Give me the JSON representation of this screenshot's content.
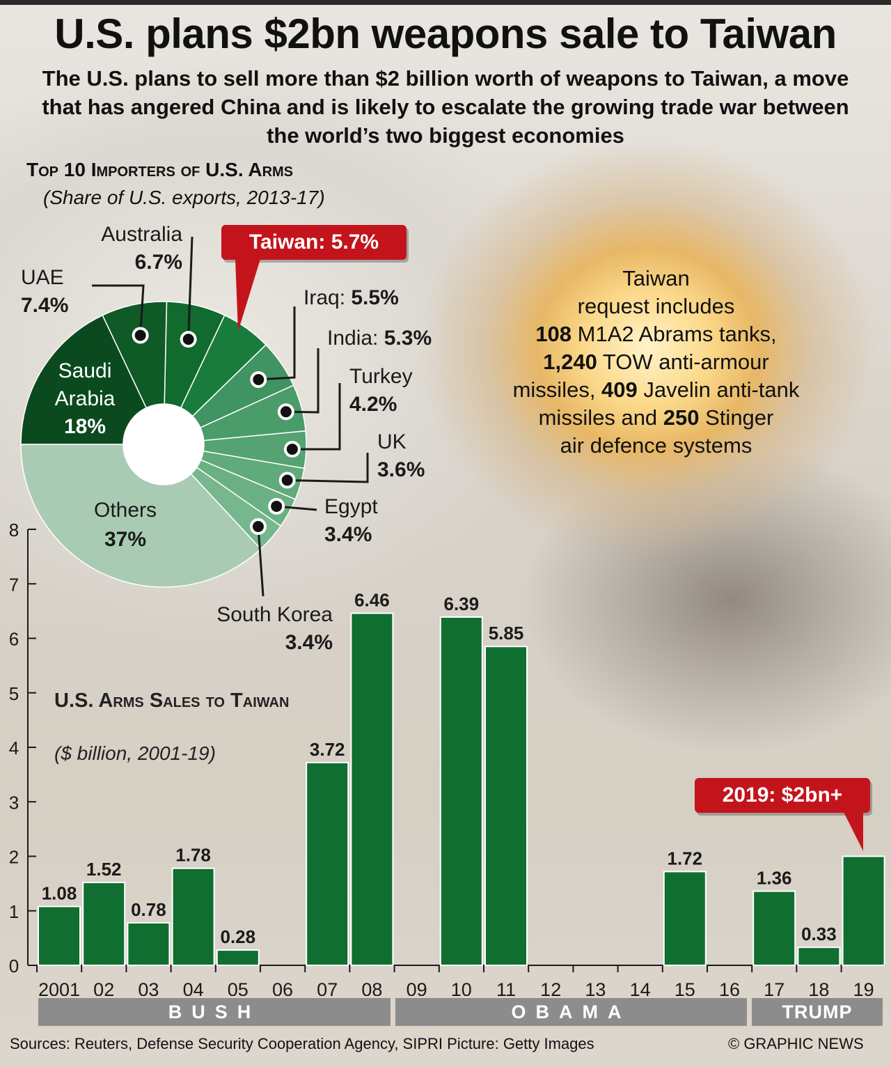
{
  "title": "U.S. plans $2bn weapons sale to Taiwan",
  "subtitle": "The U.S. plans to sell more than $2 billion worth of weapons to Taiwan, a move that has angered China and is likely to escalate the growing trade war between the world’s two biggest economies",
  "request": {
    "line1": "Taiwan",
    "line2": "request includes",
    "tanks_num": "108",
    "tanks_text": " M1A2 Abrams tanks,",
    "tow_num": "1,240",
    "tow_text": " TOW anti-armour",
    "javelin_pre": "missiles, ",
    "javelin_num": "409",
    "javelin_text": " Javelin anti-tank",
    "stinger_pre": "missiles and ",
    "stinger_num": "250",
    "stinger_text": " Stinger",
    "line_last": "air defence systems"
  },
  "callouts": {
    "taiwan": "Taiwan: 5.7%",
    "y2019": "2019: $2bn+"
  },
  "sources": "Sources: Reuters, Defense Security Cooperation Agency, SIPRI  Picture: Getty Images",
  "copyright": "© GRAPHIC NEWS",
  "chart_data": [
    {
      "type": "pie",
      "title": "Top 10 Importers of U.S. Arms",
      "subtitle": "(Share of U.S. exports, 2013-17)",
      "unit": "%",
      "colors": {
        "dark": "#0b4a1f",
        "mid": "#0f6a2e",
        "green": "#1a7c3c",
        "light": "#4e9c6c",
        "lighter": "#6aaf83",
        "others": "#a7c9b2"
      },
      "slices": [
        {
          "label": "Saudi Arabia",
          "value": 18,
          "display": "18%",
          "color": "#0b4a1f"
        },
        {
          "label": "UAE",
          "value": 7.4,
          "display": "7.4%",
          "color": "#0f5a27"
        },
        {
          "label": "Australia",
          "value": 6.7,
          "display": "6.7%",
          "color": "#116a2e"
        },
        {
          "label": "Taiwan",
          "value": 5.7,
          "display": "5.7%",
          "color": "#1a7c3c"
        },
        {
          "label": "Iraq",
          "value": 5.5,
          "display": "5.5%",
          "color": "#3f9461"
        },
        {
          "label": "India",
          "value": 5.3,
          "display": "5.3%",
          "color": "#4a9c69"
        },
        {
          "label": "Turkey",
          "value": 4.2,
          "display": "4.2%",
          "color": "#55a372"
        },
        {
          "label": "UK",
          "value": 3.6,
          "display": "3.6%",
          "color": "#60aa7b"
        },
        {
          "label": "Egypt",
          "value": 3.4,
          "display": "3.4%",
          "color": "#6bb084"
        },
        {
          "label": "South Korea",
          "value": 3.4,
          "display": "3.4%",
          "color": "#76b78d"
        },
        {
          "label": "Others",
          "value": 37,
          "display": "37%",
          "color": "#a9cbb3"
        }
      ]
    },
    {
      "type": "bar",
      "title": "U.S. Arms Sales to Taiwan",
      "subtitle": "($ billion, 2001-19)",
      "categories": [
        "2001",
        "02",
        "03",
        "04",
        "05",
        "06",
        "07",
        "08",
        "09",
        "10",
        "11",
        "12",
        "13",
        "14",
        "15",
        "16",
        "17",
        "18",
        "19"
      ],
      "values": [
        1.08,
        1.52,
        0.78,
        1.78,
        0.28,
        null,
        3.72,
        6.46,
        null,
        6.39,
        5.85,
        null,
        null,
        null,
        1.72,
        null,
        1.36,
        0.33,
        2
      ],
      "value_labels": [
        "1.08",
        "1.52",
        "0.78",
        "1.78",
        "0.28",
        "",
        "3.72",
        "6.46",
        "",
        "6.39",
        "5.85",
        "",
        "",
        "",
        "1.72",
        "",
        "1.36",
        "0.33",
        ""
      ],
      "ylim": [
        0,
        8
      ],
      "yticks": [
        0,
        1,
        2,
        3,
        4,
        5,
        6,
        7,
        8
      ],
      "bar_color": "#0f6e30",
      "eras": [
        {
          "label": "BUSH",
          "from": "2001",
          "to": "08"
        },
        {
          "label": "OBAMA",
          "from": "09",
          "to": "16"
        },
        {
          "label": "TRUMP",
          "from": "17",
          "to": "19"
        }
      ]
    }
  ]
}
